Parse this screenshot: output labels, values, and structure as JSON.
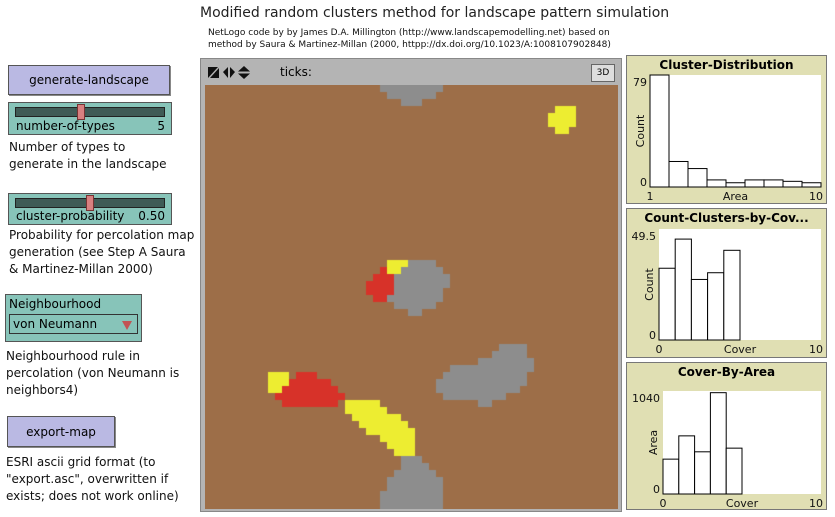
{
  "header": {
    "title": "Modified random clusters method for landscape pattern simulation",
    "credits_line1": "NetLogo code by  by James D.A. Millington (http://www.landscapemodelling.net) based on",
    "credits_line2": "method by Saura & Martinez-Millan (2000, httpp://dx.doi.org/10.1023/A:1008107902848)"
  },
  "controls": {
    "generate_button": "generate-landscape",
    "number_of_types": {
      "label": "number-of-types",
      "value": "5",
      "fraction": 0.44
    },
    "number_of_types_note": [
      "Number of types to",
      "generate in the landscape"
    ],
    "cluster_probability": {
      "label": "cluster-probability",
      "value": "0.50",
      "fraction": 0.5
    },
    "cluster_probability_note": [
      "Probability for percolation map",
      "generation (see Step A Saura",
      "& Martinez-Millan 2000)"
    ],
    "neighbourhood": {
      "label": "Neighbourhood",
      "value": "von Neumann"
    },
    "neighbourhood_note": [
      "Neighbourhood rule in",
      "percolation (von Neumann is",
      "neighbors4)"
    ],
    "export_button": "export-map",
    "export_note": [
      "ESRI ascii grid format (to",
      "\"export.asc\", overwritten if",
      "exists; does not work online)"
    ]
  },
  "view": {
    "ticks_label": "ticks:",
    "btn_3d": "3D",
    "patch_colors": [
      "#9D6E48",
      "#D73229",
      "#F16A15",
      "#EDED31",
      "#8D8D8D"
    ]
  },
  "chart_data": [
    {
      "type": "bar",
      "title": "Cluster-Distribution",
      "xlabel": "Area",
      "ylabel": "Count",
      "xlim": [
        1,
        10
      ],
      "ylim": [
        0,
        79
      ],
      "x_tick_labels": [
        "1",
        "10"
      ],
      "y_tick_labels": [
        "0",
        "79"
      ],
      "bin_starts": [
        1,
        2,
        3,
        4,
        5,
        6,
        7,
        8,
        9
      ],
      "values": [
        79,
        18,
        13,
        5,
        3,
        5,
        5,
        4,
        3
      ]
    },
    {
      "type": "bar",
      "title": "Count-Clusters-by-Cov...",
      "xlabel": "Cover",
      "ylabel": "Count",
      "xlim": [
        0,
        10
      ],
      "ylim": [
        0,
        49.5
      ],
      "x_tick_labels": [
        "0",
        "10"
      ],
      "y_tick_labels": [
        "0",
        "49.5"
      ],
      "bin_starts": [
        0,
        1,
        2,
        3,
        4
      ],
      "values": [
        32,
        45,
        27,
        30,
        40
      ]
    },
    {
      "type": "bar",
      "title": "Cover-By-Area",
      "xlabel": "Cover",
      "ylabel": "Area",
      "xlim": [
        0,
        10
      ],
      "ylim": [
        0,
        1040
      ],
      "x_tick_labels": [
        "0",
        "10"
      ],
      "y_tick_labels": [
        "0",
        "1040"
      ],
      "bin_starts": [
        0,
        1,
        2,
        3,
        4
      ],
      "values": [
        352,
        587,
        426,
        1023,
        463
      ]
    }
  ]
}
